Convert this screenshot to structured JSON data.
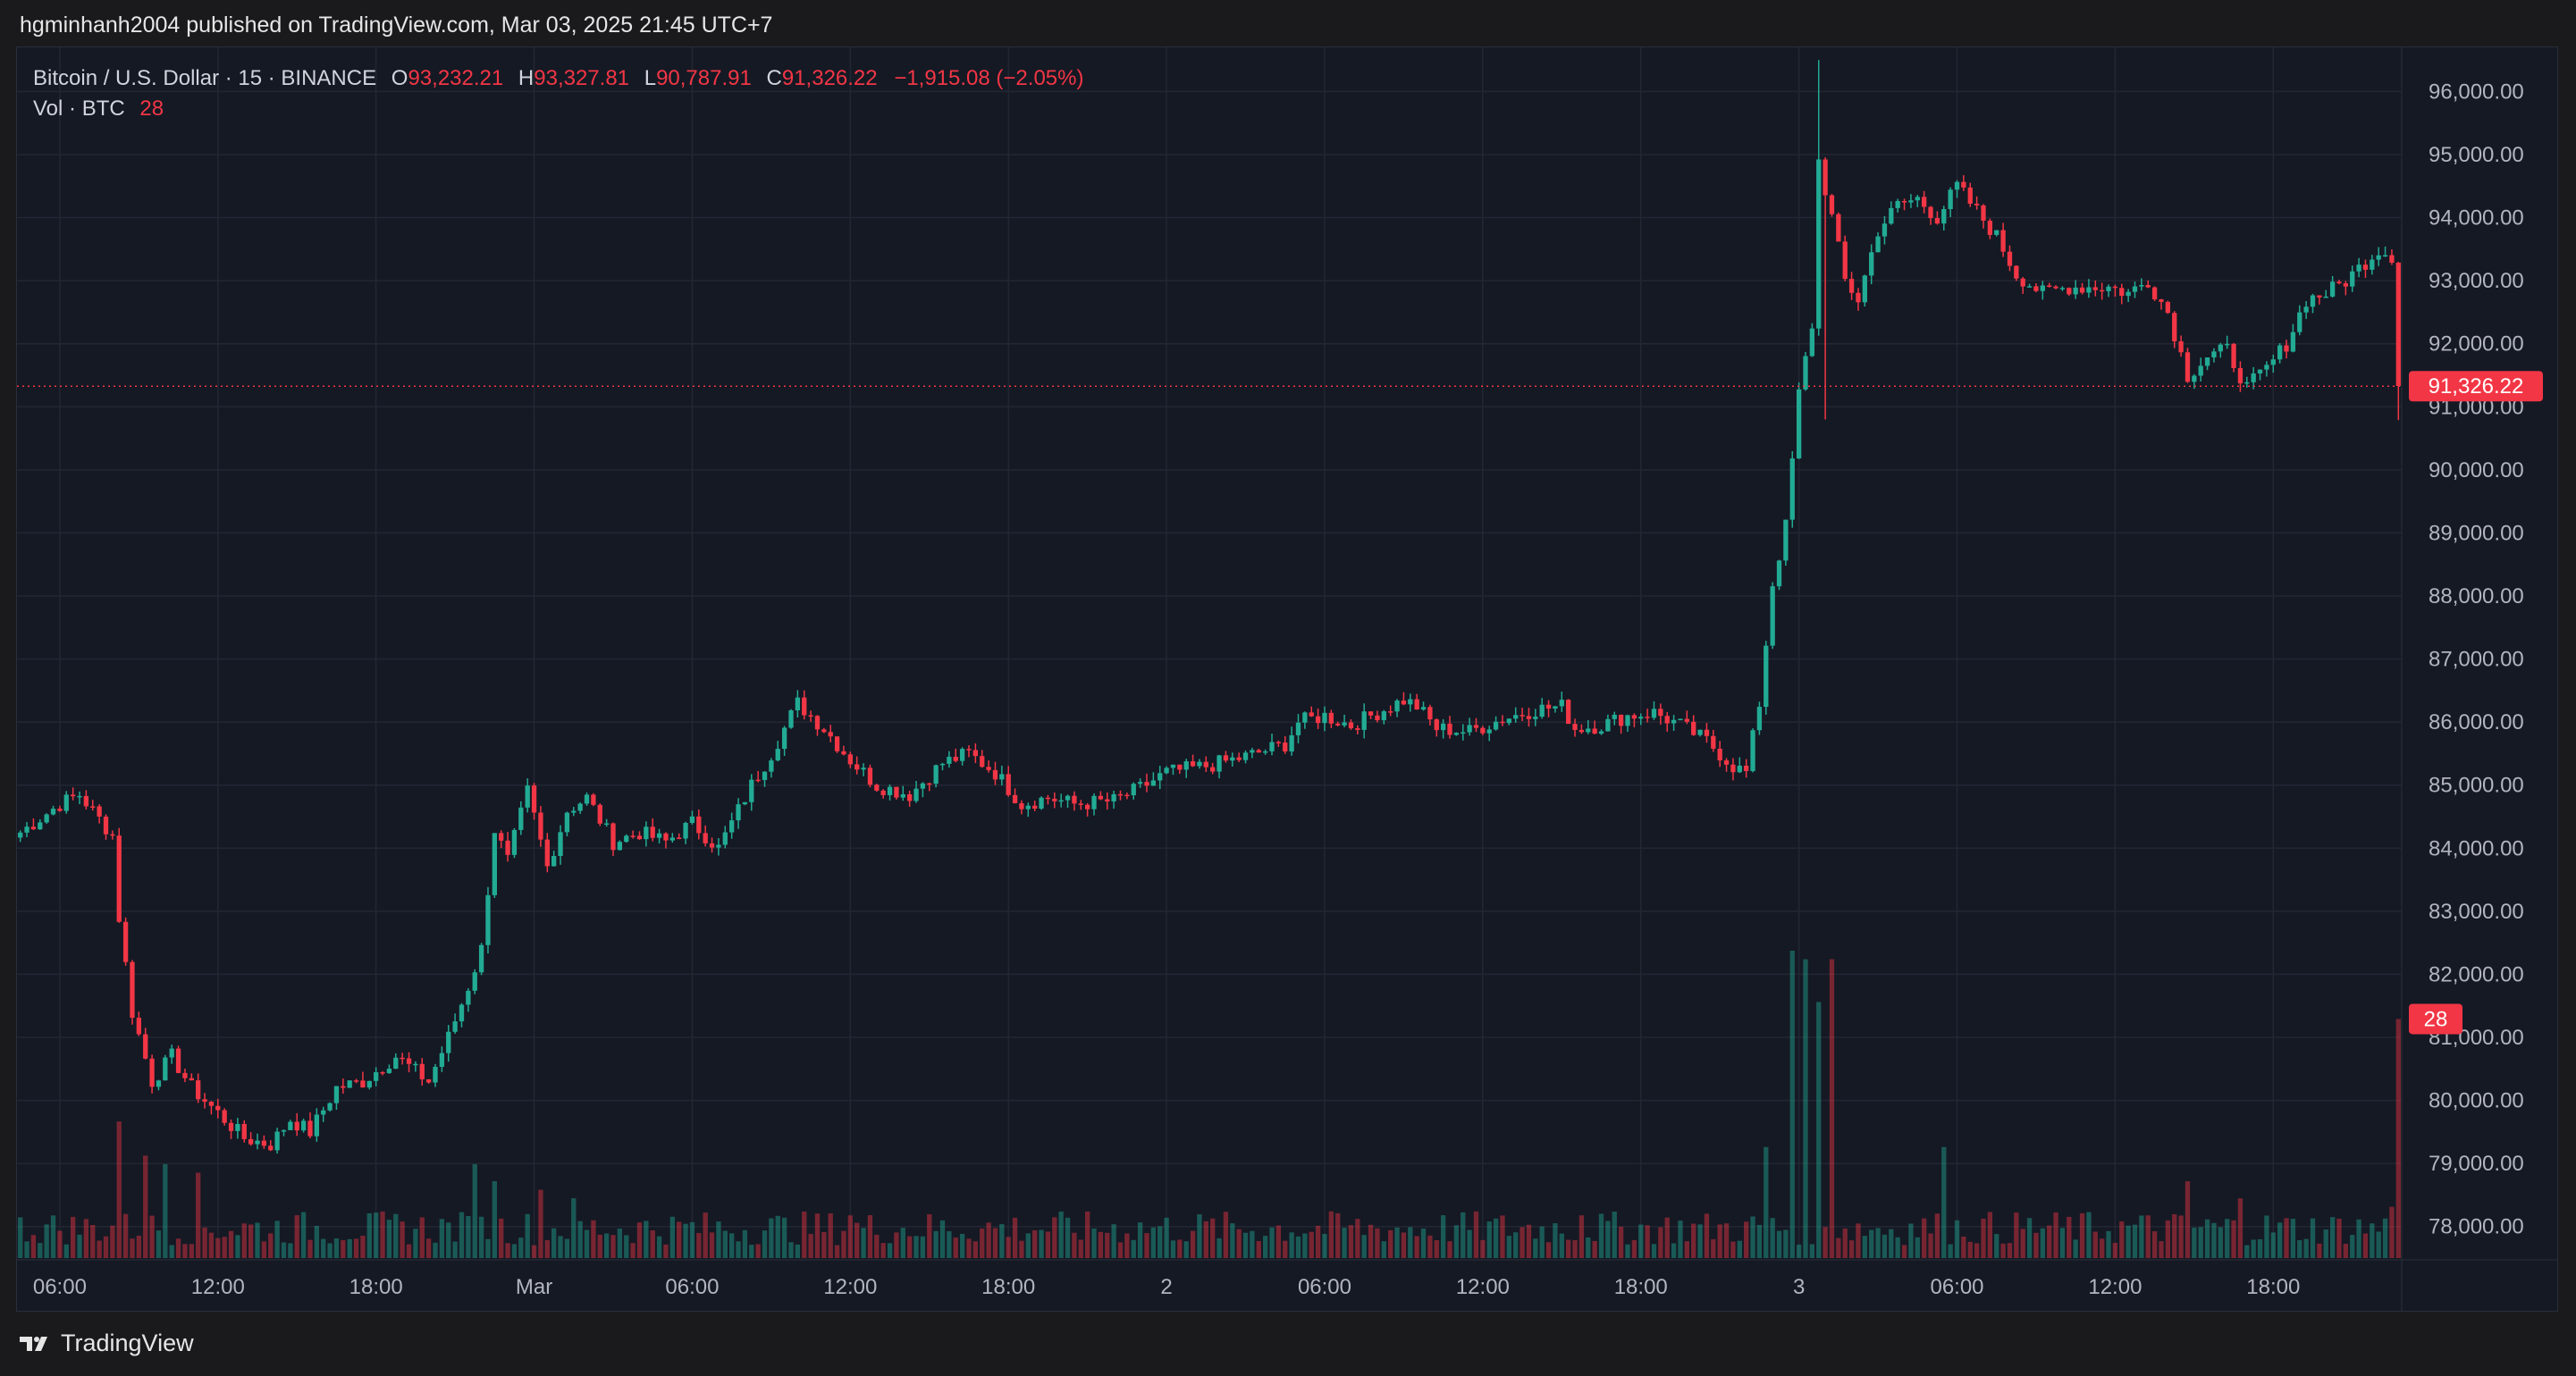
{
  "publisher_line": "hgminhanh2004 published on TradingView.com, Mar 03, 2025 21:45 UTC+7",
  "brand": {
    "name": "TradingView",
    "icon": "tradingview-logo-icon"
  },
  "legend": {
    "symbol": "Bitcoin / U.S. Dollar · 15 · BINANCE",
    "open_label": "O",
    "open": "93,232.21",
    "high_label": "H",
    "high": "93,327.81",
    "low_label": "L",
    "low": "90,787.91",
    "close_label": "C",
    "close": "91,326.22",
    "change": "−1,915.08 (−2.05%)",
    "vol_label": "Vol · BTC",
    "vol_value": "28"
  },
  "colors": {
    "up": "#22ab94",
    "down": "#f23645",
    "background": "#151924",
    "grid": "#232733",
    "axis_text": "#b2b5be"
  },
  "chart_data": {
    "type": "candlestick",
    "symbol": "BTCUSD",
    "exchange": "BINANCE",
    "interval": "15",
    "y_axis": {
      "side": "right",
      "range": [
        77500,
        96700
      ],
      "ticks": [
        "78,000.00",
        "79,000.00",
        "80,000.00",
        "81,000.00",
        "82,000.00",
        "83,000.00",
        "84,000.00",
        "85,000.00",
        "86,000.00",
        "87,000.00",
        "88,000.00",
        "89,000.00",
        "90,000.00",
        "91,000.00",
        "92,000.00",
        "93,000.00",
        "94,000.00",
        "95,000.00",
        "96,000.00"
      ],
      "tick_values": [
        78000,
        79000,
        80000,
        81000,
        82000,
        83000,
        84000,
        85000,
        86000,
        87000,
        88000,
        89000,
        90000,
        91000,
        92000,
        93000,
        94000,
        95000,
        96000
      ]
    },
    "x_axis": {
      "labels": [
        "06:00",
        "12:00",
        "18:00",
        "Mar",
        "06:00",
        "12:00",
        "18:00",
        "2",
        "06:00",
        "12:00",
        "18:00",
        "3",
        "06:00",
        "12:00",
        "18:00"
      ],
      "label_bar_index": [
        6,
        30,
        54,
        78,
        102,
        126,
        150,
        174,
        198,
        222,
        246,
        270,
        294,
        318,
        342
      ]
    },
    "grid": true,
    "last_price": {
      "value": 91326.22,
      "label": "91,326.22"
    },
    "last_volume": {
      "value": 28,
      "label": "28"
    },
    "volume_scale_max": 45,
    "anchors": [
      [
        0,
        84250
      ],
      [
        6,
        84700
      ],
      [
        9,
        84850
      ],
      [
        14,
        84200
      ],
      [
        15,
        82900
      ],
      [
        17,
        81400
      ],
      [
        20,
        80300
      ],
      [
        23,
        80700
      ],
      [
        26,
        80200
      ],
      [
        30,
        79800
      ],
      [
        34,
        79400
      ],
      [
        38,
        79300
      ],
      [
        41,
        79700
      ],
      [
        44,
        79500
      ],
      [
        48,
        80200
      ],
      [
        52,
        80300
      ],
      [
        57,
        80700
      ],
      [
        62,
        80300
      ],
      [
        65,
        81000
      ],
      [
        68,
        81800
      ],
      [
        70,
        82400
      ],
      [
        72,
        84300
      ],
      [
        74,
        83800
      ],
      [
        77,
        84900
      ],
      [
        80,
        83700
      ],
      [
        83,
        84600
      ],
      [
        86,
        84800
      ],
      [
        90,
        84100
      ],
      [
        94,
        84250
      ],
      [
        98,
        84100
      ],
      [
        102,
        84400
      ],
      [
        106,
        84000
      ],
      [
        111,
        85000
      ],
      [
        114,
        85500
      ],
      [
        118,
        86300
      ],
      [
        122,
        85900
      ],
      [
        126,
        85400
      ],
      [
        130,
        85000
      ],
      [
        135,
        84850
      ],
      [
        140,
        85350
      ],
      [
        144,
        85500
      ],
      [
        148,
        85200
      ],
      [
        152,
        84700
      ],
      [
        156,
        84800
      ],
      [
        160,
        84700
      ],
      [
        166,
        84750
      ],
      [
        170,
        84950
      ],
      [
        174,
        85200
      ],
      [
        180,
        85300
      ],
      [
        186,
        85450
      ],
      [
        192,
        85650
      ],
      [
        194,
        86000
      ],
      [
        198,
        86100
      ],
      [
        202,
        85950
      ],
      [
        206,
        86150
      ],
      [
        210,
        86350
      ],
      [
        212,
        86250
      ],
      [
        215,
        85900
      ],
      [
        220,
        85850
      ],
      [
        225,
        86050
      ],
      [
        230,
        86200
      ],
      [
        234,
        86250
      ],
      [
        236,
        85900
      ],
      [
        240,
        85950
      ],
      [
        244,
        86100
      ],
      [
        248,
        86150
      ],
      [
        252,
        85950
      ],
      [
        256,
        85700
      ],
      [
        260,
        85300
      ],
      [
        262,
        85200
      ],
      [
        264,
        86300
      ],
      [
        266,
        88200
      ],
      [
        268,
        89100
      ],
      [
        270,
        91200
      ],
      [
        272,
        92300
      ],
      [
        273,
        94900
      ],
      [
        275,
        94000
      ],
      [
        277,
        93000
      ],
      [
        279,
        92700
      ],
      [
        282,
        93800
      ],
      [
        285,
        94200
      ],
      [
        288,
        94300
      ],
      [
        291,
        94000
      ],
      [
        294,
        94500
      ],
      [
        297,
        94100
      ],
      [
        300,
        93700
      ],
      [
        303,
        93100
      ],
      [
        307,
        92800
      ],
      [
        311,
        92900
      ],
      [
        314,
        92900
      ],
      [
        317,
        92900
      ],
      [
        320,
        92800
      ],
      [
        323,
        93000
      ],
      [
        326,
        92500
      ],
      [
        329,
        91500
      ],
      [
        332,
        91800
      ],
      [
        335,
        91900
      ],
      [
        338,
        91300
      ],
      [
        341,
        91600
      ],
      [
        344,
        92000
      ],
      [
        347,
        92700
      ],
      [
        350,
        92800
      ],
      [
        353,
        93000
      ],
      [
        356,
        93300
      ],
      [
        358,
        93500
      ],
      [
        360,
        93400
      ],
      [
        361,
        91330
      ]
    ],
    "wick_extremes": [
      {
        "bar": 273,
        "high": 96500
      },
      {
        "bar": 274,
        "low": 90800
      },
      {
        "bar": 361,
        "low": 90790
      }
    ],
    "volume_bursts": [
      {
        "bar": 15,
        "value": 16
      },
      {
        "bar": 19,
        "value": 12
      },
      {
        "bar": 22,
        "value": 11
      },
      {
        "bar": 27,
        "value": 10
      },
      {
        "bar": 69,
        "value": 11
      },
      {
        "bar": 72,
        "value": 9
      },
      {
        "bar": 79,
        "value": 8
      },
      {
        "bar": 84,
        "value": 7
      },
      {
        "bar": 126,
        "value": 5
      },
      {
        "bar": 237,
        "value": 5
      },
      {
        "bar": 265,
        "value": 13
      },
      {
        "bar": 269,
        "value": 36
      },
      {
        "bar": 271,
        "value": 35
      },
      {
        "bar": 273,
        "value": 30
      },
      {
        "bar": 275,
        "value": 35
      },
      {
        "bar": 292,
        "value": 13
      },
      {
        "bar": 329,
        "value": 9
      },
      {
        "bar": 337,
        "value": 7
      },
      {
        "bar": 360,
        "value": 6
      },
      {
        "bar": 361,
        "value": 28
      }
    ]
  }
}
